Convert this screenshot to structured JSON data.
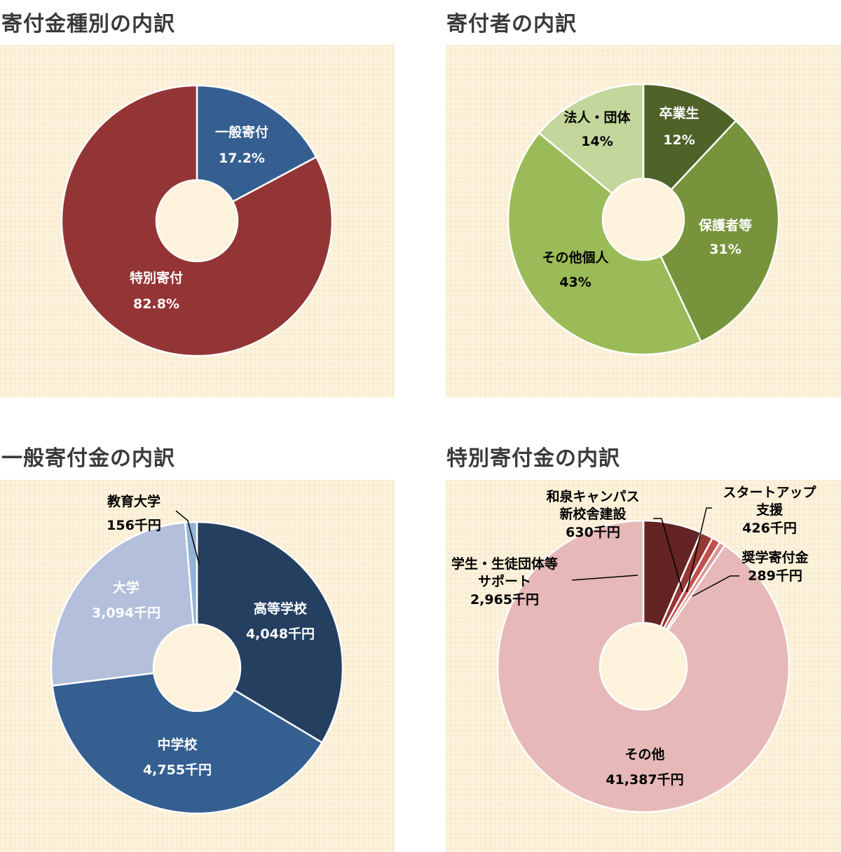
{
  "colors": {
    "hole": "#fdf3dc",
    "separator": "#ffffff"
  },
  "chart_data": [
    {
      "id": "c1",
      "type": "pie",
      "title": "寄付金種別の内訳",
      "slices": [
        {
          "label": "一般寄付",
          "value_text": "17.2%",
          "value": 17.2,
          "color": "#355f91",
          "text_color": "#ffffff"
        },
        {
          "label": "特別寄付",
          "value_text": "82.8%",
          "value": 82.8,
          "color": "#943535",
          "text_color": "#ffffff"
        }
      ]
    },
    {
      "id": "c2",
      "type": "pie",
      "title": "寄付者の内訳",
      "slices": [
        {
          "label": "卒業生",
          "value_text": "12%",
          "value": 12,
          "color": "#4f6228",
          "text_color": "#ffffff"
        },
        {
          "label": "保護者等",
          "value_text": "31%",
          "value": 31,
          "color": "#77933c",
          "text_color": "#ffffff"
        },
        {
          "label": "その他個人",
          "value_text": "43%",
          "value": 43,
          "color": "#9bbb59",
          "text_color": "#000000"
        },
        {
          "label": "法人・団体",
          "value_text": "14%",
          "value": 14,
          "color": "#c3d69b",
          "text_color": "#000000"
        }
      ]
    },
    {
      "id": "c3",
      "type": "pie",
      "title": "一般寄付金の内訳",
      "slices": [
        {
          "label": "高等学校",
          "value_text": "4,048千円",
          "value": 4048,
          "color": "#243f60",
          "text_color": "#ffffff"
        },
        {
          "label": "中学校",
          "value_text": "4,755千円",
          "value": 4755,
          "color": "#355f91",
          "text_color": "#ffffff"
        },
        {
          "label": "大学",
          "value_text": "3,094千円",
          "value": 3094,
          "color": "#b3bfdb",
          "text_color": "#ffffff"
        },
        {
          "label": "教育大学",
          "value_text": "156千円",
          "value": 156,
          "color": "#95b3d7",
          "text_color": "#000000"
        }
      ]
    },
    {
      "id": "c4",
      "type": "pie",
      "title": "特別寄付金の内訳",
      "slices": [
        {
          "label": "学生・生徒団体等サポート",
          "label_lines": [
            "学生・生徒団体等",
            "サポート"
          ],
          "value_text": "2,965千円",
          "value": 2965,
          "color": "#632423",
          "text_color": "#000000"
        },
        {
          "label": "和泉キャンパス新校舎建設",
          "label_lines": [
            "和泉キャンパス",
            "新校舎建設"
          ],
          "value_text": "630千円",
          "value": 630,
          "color": "#943735",
          "text_color": "#000000"
        },
        {
          "label": "スタートアップ支援",
          "label_lines": [
            "スタートアップ",
            "支援"
          ],
          "value_text": "426千円",
          "value": 426,
          "color": "#c0504d",
          "text_color": "#000000"
        },
        {
          "label": "奨学寄付金",
          "label_lines": [
            "奨学寄付金"
          ],
          "value_text": "289千円",
          "value": 289,
          "color": "#d99694",
          "text_color": "#000000"
        },
        {
          "label": "その他",
          "label_lines": [
            "その他"
          ],
          "value_text": "41,387千円",
          "value": 41387,
          "color": "#e6b9b8",
          "text_color": "#000000"
        }
      ]
    }
  ]
}
